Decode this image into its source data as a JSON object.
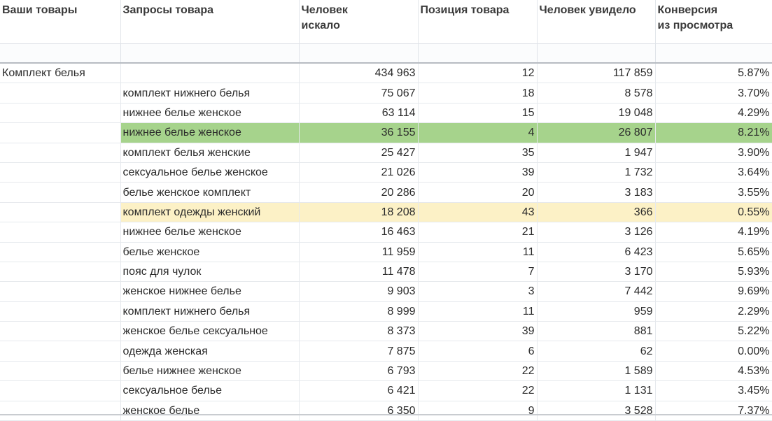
{
  "headers": [
    "Ваши товары",
    "Запросы товара",
    "Человек\nискало",
    "Позиция товара",
    "Человек увидело",
    "Конверсия\nиз просмотра"
  ],
  "colors": {
    "highlight_green": "#a6d38c",
    "highlight_yellow": "#fcf1c6"
  },
  "rows": [
    {
      "product": "Комплект белья",
      "query": "",
      "searched": "434 963",
      "position": "12",
      "seen": "117 859",
      "conversion": "5.87%",
      "highlight": ""
    },
    {
      "product": "",
      "query": "комплект нижнего белья",
      "searched": "75 067",
      "position": "18",
      "seen": "8 578",
      "conversion": "3.70%",
      "highlight": ""
    },
    {
      "product": "",
      "query": "нижнее белье женское",
      "searched": "63 114",
      "position": "15",
      "seen": "19 048",
      "conversion": "4.29%",
      "highlight": ""
    },
    {
      "product": "",
      "query": "нижнее белье женское",
      "searched": "36 155",
      "position": "4",
      "seen": "26 807",
      "conversion": "8.21%",
      "highlight": "green"
    },
    {
      "product": "",
      "query": "комплект белья женские",
      "searched": "25 427",
      "position": "35",
      "seen": "1 947",
      "conversion": "3.90%",
      "highlight": ""
    },
    {
      "product": "",
      "query": "сексуальное белье женское",
      "searched": "21 026",
      "position": "39",
      "seen": "1 732",
      "conversion": "3.64%",
      "highlight": ""
    },
    {
      "product": "",
      "query": "белье женское комплект",
      "searched": "20 286",
      "position": "20",
      "seen": "3 183",
      "conversion": "3.55%",
      "highlight": ""
    },
    {
      "product": "",
      "query": "комплект одежды женский",
      "searched": "18 208",
      "position": "43",
      "seen": "366",
      "conversion": "0.55%",
      "highlight": "yellow"
    },
    {
      "product": "",
      "query": "нижнее белье женское",
      "searched": "16 463",
      "position": "21",
      "seen": "3 126",
      "conversion": "4.19%",
      "highlight": ""
    },
    {
      "product": "",
      "query": "белье женское",
      "searched": "11 959",
      "position": "11",
      "seen": "6 423",
      "conversion": "5.65%",
      "highlight": ""
    },
    {
      "product": "",
      "query": "пояс для чулок",
      "searched": "11 478",
      "position": "7",
      "seen": "3 170",
      "conversion": "5.93%",
      "highlight": ""
    },
    {
      "product": "",
      "query": "женское нижнее белье",
      "searched": "9 903",
      "position": "3",
      "seen": "7 442",
      "conversion": "9.69%",
      "highlight": ""
    },
    {
      "product": "",
      "query": "комплект нижнего белья",
      "searched": "8 999",
      "position": "11",
      "seen": "959",
      "conversion": "2.29%",
      "highlight": ""
    },
    {
      "product": "",
      "query": "женское белье сексуальное",
      "searched": "8 373",
      "position": "39",
      "seen": "881",
      "conversion": "5.22%",
      "highlight": ""
    },
    {
      "product": "",
      "query": "одежда женская",
      "searched": "7 875",
      "position": "6",
      "seen": "62",
      "conversion": "0.00%",
      "highlight": ""
    },
    {
      "product": "",
      "query": "белье нижнее женское",
      "searched": "6 793",
      "position": "22",
      "seen": "1 589",
      "conversion": "4.53%",
      "highlight": ""
    },
    {
      "product": "",
      "query": "сексуальное белье",
      "searched": "6 421",
      "position": "22",
      "seen": "1 131",
      "conversion": "3.45%",
      "highlight": ""
    },
    {
      "product": "",
      "query": "женское белье",
      "searched": "6 350",
      "position": "9",
      "seen": "3 528",
      "conversion": "7.37%",
      "highlight": ""
    }
  ]
}
